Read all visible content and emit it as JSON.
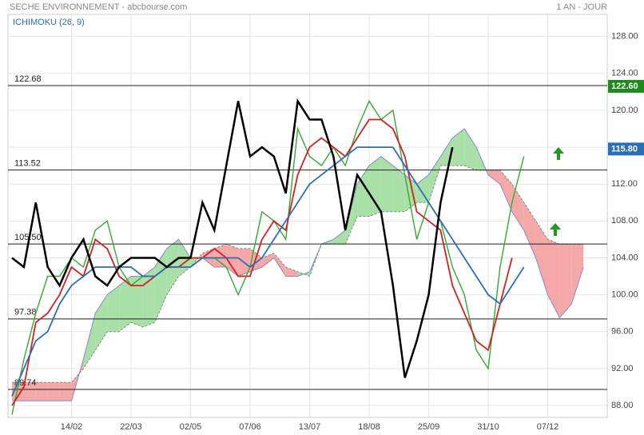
{
  "chart_data": {
    "type": "ichimoku",
    "title": "SECHE ENVIRONNEMENT - abcbourse.com",
    "period": "1 AN - JOUR",
    "indicator": "ICHIMOKU (26, 9)",
    "categories": [
      null,
      null,
      null,
      null,
      null,
      "14/02",
      null,
      null,
      null,
      null,
      "22/03",
      null,
      null,
      null,
      null,
      "02/05",
      null,
      null,
      null,
      null,
      "07/06",
      null,
      null,
      null,
      null,
      "13/07",
      null,
      null,
      null,
      null,
      "18/08",
      null,
      null,
      null,
      null,
      "25/09",
      null,
      null,
      null,
      null,
      "31/10",
      null,
      null,
      null,
      null,
      "07/12",
      null,
      null,
      null,
      null,
      null
    ],
    "series": [
      {
        "name": "Cours",
        "color": "#33aa33",
        "values": [
          87,
          93,
          98,
          102,
          102,
          104,
          103,
          107,
          108,
          103,
          101,
          102,
          102,
          103,
          103,
          104,
          104,
          104,
          103,
          100,
          103,
          109,
          108,
          106,
          118,
          115,
          114,
          116,
          114,
          118,
          121,
          119,
          120,
          113,
          106,
          110,
          108,
          103,
          100,
          94,
          92,
          103,
          110,
          115,
          null,
          null,
          null,
          null,
          null,
          null,
          null
        ]
      },
      {
        "name": "Tenkan",
        "color": "#d42020",
        "values": [
          88,
          90,
          97,
          98,
          100,
          103,
          102,
          106,
          105,
          102,
          101,
          101,
          102,
          103,
          103,
          104,
          104,
          105,
          104,
          102,
          102,
          106,
          108,
          107,
          113,
          116,
          117,
          116,
          115,
          117,
          119,
          119,
          118,
          115,
          109,
          108,
          107,
          101,
          98,
          95,
          94,
          99,
          104,
          null,
          null,
          null,
          null,
          null,
          null,
          null,
          null
        ]
      },
      {
        "name": "Kijun",
        "color": "#2a6fb5",
        "values": [
          89,
          92,
          95,
          96,
          99,
          101,
          102,
          103,
          103,
          103,
          103,
          102,
          102,
          103,
          103,
          103,
          104,
          104,
          104,
          104,
          103,
          104,
          106,
          108,
          110,
          112,
          113,
          114,
          115,
          116,
          116,
          116,
          116,
          114,
          112,
          110,
          108,
          106,
          104,
          102,
          100,
          99,
          101,
          103,
          null,
          null,
          null,
          null,
          null,
          null,
          null
        ]
      },
      {
        "name": "Chikou",
        "color": "#000000",
        "values": [
          104,
          103,
          110,
          103,
          101,
          104,
          106,
          102,
          101,
          103,
          104,
          104,
          104,
          103,
          104,
          104,
          110,
          107,
          114,
          121,
          115,
          116,
          115,
          111,
          121,
          119,
          119,
          115,
          107,
          113,
          111,
          109,
          101,
          91,
          95,
          100,
          110,
          116,
          null,
          null,
          null,
          null,
          null,
          null,
          null,
          null,
          null,
          null,
          null,
          null,
          null
        ]
      }
    ],
    "cloud": {
      "span_a": [
        88.5,
        88.5,
        88.5,
        88.5,
        88.5,
        88.5,
        93,
        98,
        100,
        101,
        102,
        102,
        103,
        105,
        106,
        104,
        104,
        103,
        103,
        102,
        102.5,
        103,
        104,
        102,
        102,
        102.5,
        105.5,
        106,
        107,
        112,
        114,
        115,
        114,
        113,
        112,
        113,
        115,
        117,
        118,
        116,
        113,
        112,
        109,
        107,
        104,
        100,
        97.5,
        99,
        103,
        null,
        null
      ],
      "span_b": [
        90.5,
        90.5,
        90.5,
        90.5,
        90.5,
        90.5,
        92,
        94,
        96,
        96,
        97,
        96.5,
        97,
        100,
        102,
        103,
        104.5,
        105,
        105.5,
        105,
        105,
        104,
        104.5,
        103,
        102.5,
        102,
        105.5,
        105.5,
        105.5,
        108.5,
        108.5,
        109,
        109,
        109,
        110,
        110,
        114,
        114,
        114,
        113.5,
        113.5,
        113.5,
        112,
        110,
        108,
        106,
        105.5,
        105.5,
        105.5,
        null,
        null
      ],
      "up_color": "#a8e0a8",
      "down_color": "#f5a8a8"
    },
    "levels": [
      122.68,
      113.52,
      {
        "value": 105.5,
        "label": "105.50"
      },
      97.38,
      89.74
    ],
    "badges": [
      {
        "value": 122.6,
        "label": "122.60",
        "color": "#1e8a1e"
      },
      {
        "value": 115.8,
        "label": "115.80",
        "color": "#2a6fb5"
      }
    ],
    "ylim": [
      86.7,
      130.4
    ],
    "yticks": [
      {
        "value": 88,
        "label": "88.00"
      },
      {
        "value": 92,
        "label": "92.00"
      },
      {
        "value": 96,
        "label": "96.00"
      },
      {
        "value": 100,
        "label": "100.00"
      },
      {
        "value": 104,
        "label": "104.00"
      },
      {
        "value": 108,
        "label": "108.00"
      },
      {
        "value": 112,
        "label": "112.00"
      },
      {
        "value": 116,
        "label": "116.00"
      },
      {
        "value": 120,
        "label": "120.00"
      },
      {
        "value": 124,
        "label": "124.00"
      },
      {
        "value": 128,
        "label": "128.00"
      }
    ],
    "grid": true
  }
}
